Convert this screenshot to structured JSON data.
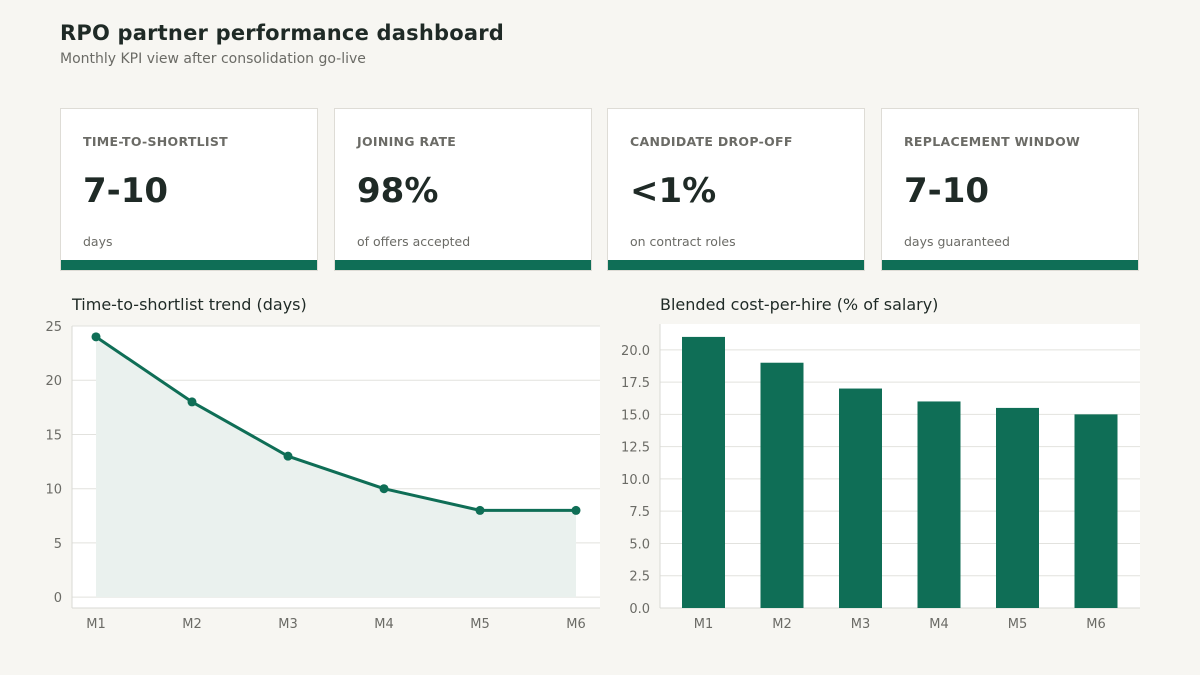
{
  "header": {
    "title": "RPO partner performance dashboard",
    "subtitle": "Monthly KPI view after consolidation go-live"
  },
  "colors": {
    "accent": "#0f6e56",
    "fill": "#eaf1ee"
  },
  "kpis": [
    {
      "label": "TIME-TO-SHORTLIST",
      "value": "7-10",
      "note": "days"
    },
    {
      "label": "JOINING RATE",
      "value": "98%",
      "note": "of offers accepted"
    },
    {
      "label": "CANDIDATE DROP-OFF",
      "value": "<1%",
      "note": "on contract roles"
    },
    {
      "label": "REPLACEMENT WINDOW",
      "value": "7-10",
      "note": "days guaranteed"
    }
  ],
  "chart_data": [
    {
      "type": "line",
      "title": "Time-to-shortlist trend (days)",
      "x": [
        "M1",
        "M2",
        "M3",
        "M4",
        "M5",
        "M6"
      ],
      "series": [
        {
          "values": [
            24,
            18,
            13,
            10,
            8,
            8
          ]
        }
      ],
      "ylim": [
        -1,
        25
      ],
      "yticks": [
        0,
        5,
        10,
        15,
        20,
        25
      ],
      "grid": true,
      "area_fill": true
    },
    {
      "type": "bar",
      "title": "Blended cost-per-hire (% of salary)",
      "categories": [
        "M1",
        "M2",
        "M3",
        "M4",
        "M5",
        "M6"
      ],
      "values": [
        21,
        19,
        17,
        16,
        15.5,
        15
      ],
      "ylim": [
        0,
        22
      ],
      "yticks": [
        "0.0",
        "2.5",
        "5.0",
        "7.5",
        "10.0",
        "12.5",
        "15.0",
        "17.5",
        "20.0"
      ],
      "grid": true
    }
  ]
}
